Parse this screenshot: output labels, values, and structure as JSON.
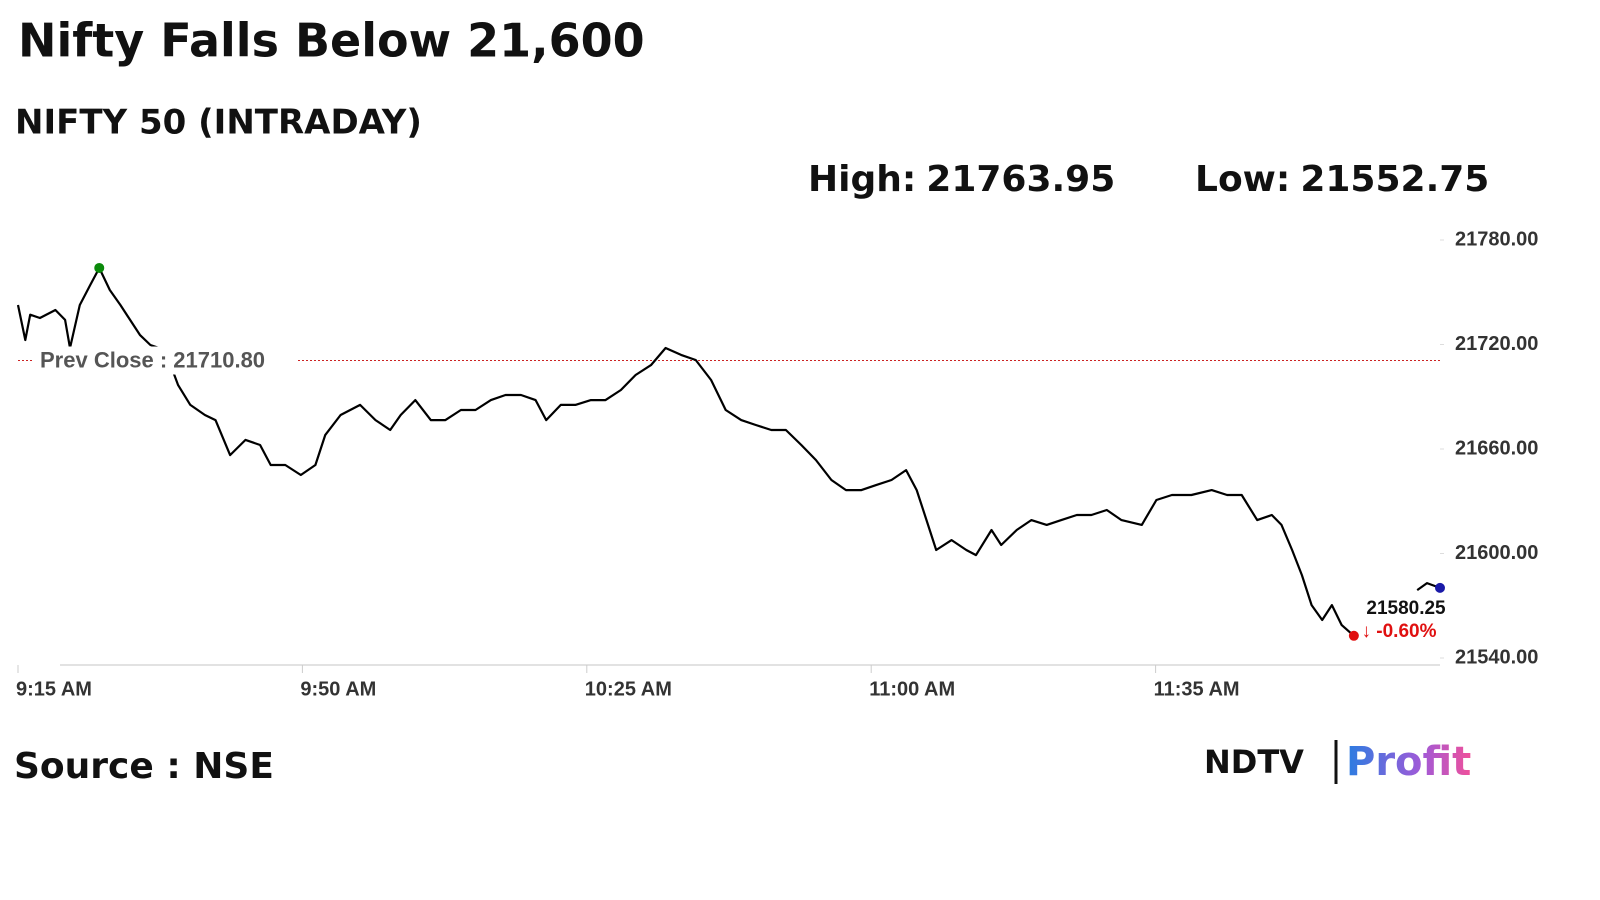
{
  "chart_data": {
    "type": "line",
    "title": "Nifty Falls Below 21,600",
    "subtitle": "NIFTY 50 (INTRADAY)",
    "high_label": "High:",
    "high": 21763.95,
    "low_label": "Low:",
    "low": 21552.75,
    "prev_close": {
      "value": 21710.8,
      "label": "Prev Close : 21710.80"
    },
    "prev_close_color": "#cc2222",
    "change_label": "↓ -0.60%",
    "change_color": "#e01010",
    "high_color": "#0a8a0a",
    "low_color": "#e01010",
    "last_color": "#1a1aa8",
    "source": "Source : NSE",
    "brand": [
      "NDTV",
      "Profit"
    ],
    "xlim": [
      555,
      730
    ],
    "xticks": [
      {
        "value": 555,
        "label": "9:15 AM"
      },
      {
        "value": 590,
        "label": "9:50 AM"
      },
      {
        "value": 625,
        "label": "10:25 AM"
      },
      {
        "value": 660,
        "label": "11:00 AM"
      },
      {
        "value": 695,
        "label": "11:35 AM"
      }
    ],
    "ylim": [
      21540,
      21780
    ],
    "yticks": [
      {
        "value": 21540,
        "label": "21540.00"
      },
      {
        "value": 21600,
        "label": "21600.00"
      },
      {
        "value": 21660,
        "label": "21660.00"
      },
      {
        "value": 21720,
        "label": "21720.00"
      },
      {
        "value": 21780,
        "label": "21780.00"
      }
    ],
    "x": [
      555,
      555.9,
      556.5,
      557.7,
      559.6,
      560.8,
      561.4,
      562.6,
      563.9,
      565,
      566.3,
      567.6,
      568.8,
      570,
      571.3,
      573.1,
      574.7,
      576.2,
      578,
      579.3,
      581.1,
      583,
      584.8,
      586.1,
      587.9,
      589.8,
      591.6,
      592.8,
      594.7,
      597.1,
      599,
      600.8,
      602.1,
      603.9,
      605.8,
      607.6,
      609.5,
      611.3,
      613.2,
      615,
      616.9,
      618.7,
      620,
      621.8,
      623.6,
      625.5,
      627.3,
      629.2,
      631,
      632.9,
      634.7,
      636.6,
      638.4,
      640.3,
      642.1,
      644,
      645.8,
      647.7,
      649.5,
      651.4,
      653.2,
      655.1,
      656.9,
      658.8,
      660.6,
      662.5,
      664.3,
      665.6,
      666.8,
      668,
      669.9,
      671.7,
      672.9,
      674.8,
      676,
      677.9,
      679.7,
      681.6,
      683.4,
      685.3,
      687.1,
      689,
      690.8,
      693.3,
      695.1,
      697,
      699.4,
      701.9,
      703.8,
      705.6,
      707.5,
      709.3,
      710.5,
      711.8,
      713,
      714.2,
      715.5,
      716.7,
      717.9,
      719.4,
      722,
      727.2,
      728.4,
      730
    ],
    "series": [
      {
        "color": "#000000",
        "values": [
          21742.7,
          21722.6,
          21737.1,
          21735.2,
          21739.8,
          21734.1,
          21718.0,
          21742.7,
          21754.2,
          21763.95,
          21751.3,
          21742.7,
          21734.1,
          21725.5,
          21719.7,
          21716.8,
          21696.7,
          21685.3,
          21679.5,
          21676.6,
          21656.5,
          21665.2,
          21662.3,
          21650.8,
          21650.8,
          21645.1,
          21650.8,
          21668.0,
          21679.5,
          21685.3,
          21676.6,
          21670.9,
          21679.5,
          21688.1,
          21676.6,
          21676.6,
          21682.4,
          21682.4,
          21688.1,
          21691.0,
          21691.0,
          21688.1,
          21676.6,
          21685.3,
          21685.3,
          21688.1,
          21688.1,
          21693.9,
          21702.5,
          21708.2,
          21718.0,
          21714.0,
          21711.1,
          21699.6,
          21682.4,
          21676.6,
          21673.8,
          21670.9,
          21670.9,
          21662.3,
          21653.7,
          21642.2,
          21636.4,
          21636.4,
          21639.3,
          21642.2,
          21647.9,
          21636.4,
          21619.2,
          21602.0,
          21607.7,
          21602.0,
          21599.1,
          21613.5,
          21604.9,
          21613.5,
          21619.2,
          21616.4,
          21619.2,
          21622.1,
          21622.1,
          21625.0,
          21619.2,
          21616.4,
          21630.7,
          21633.6,
          21633.6,
          21636.4,
          21633.6,
          21633.6,
          21619.2,
          21622.1,
          21616.4,
          21602.0,
          21587.6,
          21570.4,
          21561.8,
          21570.4,
          21558.9,
          21552.75,
          null,
          21579.0,
          21583.0,
          21580.25
        ]
      }
    ]
  }
}
